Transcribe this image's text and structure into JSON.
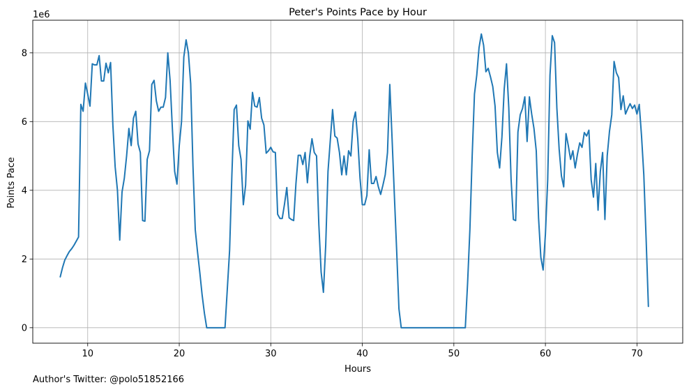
{
  "chart_data": {
    "type": "line",
    "title": "Peter's Points Pace by Hour",
    "xlabel": "Hours",
    "ylabel": "Points Pace",
    "y_offset_label": "1e6",
    "xlim": [
      4,
      75
    ],
    "ylim": [
      -0.45,
      8.95
    ],
    "xticks": [
      10,
      20,
      30,
      40,
      50,
      60,
      70
    ],
    "yticks": [
      0,
      2,
      4,
      6,
      8
    ],
    "grid": true,
    "line_color": "#1f77b4",
    "series": [
      {
        "x": [
          7.0,
          7.25,
          7.5,
          7.75,
          8.0,
          8.25,
          8.5,
          8.75,
          9.0,
          9.25,
          9.5,
          9.75,
          10.0,
          10.25,
          10.5,
          10.75,
          11.0,
          11.25,
          11.5,
          11.75,
          12.0,
          12.25,
          12.5,
          12.75,
          13.0,
          13.25,
          13.5,
          13.75,
          14.0,
          14.25,
          14.5,
          14.75,
          15.0,
          15.25,
          15.5,
          15.75,
          16.0,
          16.25,
          16.5,
          16.75,
          17.0,
          17.25,
          17.5,
          17.75,
          18.0,
          18.25,
          18.5,
          18.75,
          19.0,
          19.25,
          19.5,
          19.75,
          20.0,
          20.25,
          20.5,
          20.75,
          21.0,
          21.25,
          21.5,
          21.75,
          22.0,
          22.25,
          22.5,
          22.75,
          23.0,
          23.25,
          23.5,
          23.75,
          24.0,
          24.25,
          24.5,
          24.75,
          25.0,
          25.25,
          25.5,
          25.75,
          26.0,
          26.25,
          26.5,
          26.75,
          27.0,
          27.25,
          27.5,
          27.75,
          28.0,
          28.25,
          28.5,
          28.75,
          29.0,
          29.25,
          29.5,
          29.75,
          30.0,
          30.25,
          30.5,
          30.75,
          31.0,
          31.25,
          31.5,
          31.75,
          32.0,
          32.25,
          32.5,
          32.75,
          33.0,
          33.25,
          33.5,
          33.75,
          34.0,
          34.25,
          34.5,
          34.75,
          35.0,
          35.25,
          35.5,
          35.75,
          36.0,
          36.25,
          36.5,
          36.75,
          37.0,
          37.25,
          37.5,
          37.75,
          38.0,
          38.25,
          38.5,
          38.75,
          39.0,
          39.25,
          39.5,
          39.75,
          40.0,
          40.25,
          40.5,
          40.75,
          41.0,
          41.25,
          41.5,
          41.75,
          42.0,
          42.25,
          42.5,
          42.75,
          43.0,
          43.25,
          43.5,
          43.75,
          44.0,
          44.25,
          44.5,
          44.75,
          45.0,
          45.25,
          45.5,
          45.75,
          46.0,
          46.25,
          46.5,
          46.75,
          47.0,
          47.25,
          47.5,
          47.75,
          48.0,
          48.25,
          48.5,
          48.75,
          49.0,
          49.25,
          49.5,
          49.75,
          50.0,
          50.25,
          50.5,
          50.75,
          51.0,
          51.25,
          51.5,
          51.75,
          52.0,
          52.25,
          52.5,
          52.75,
          53.0,
          53.25,
          53.5,
          53.75,
          54.0,
          54.25,
          54.5,
          54.75,
          55.0,
          55.25,
          55.5,
          55.75,
          56.0,
          56.25,
          56.5,
          56.75,
          57.0,
          57.25,
          57.5,
          57.75,
          58.0,
          58.25,
          58.5,
          58.75,
          59.0,
          59.25,
          59.5,
          59.75,
          60.0,
          60.25,
          60.5,
          60.75,
          61.0,
          61.25,
          61.5,
          61.75,
          62.0,
          62.25,
          62.5,
          62.75,
          63.0,
          63.25,
          63.5,
          63.75,
          64.0,
          64.25,
          64.5,
          64.75,
          65.0,
          65.25,
          65.5,
          65.75,
          66.0,
          66.25,
          66.5,
          66.75,
          67.0,
          67.25,
          67.5,
          67.75,
          68.0,
          68.25,
          68.5,
          68.75,
          69.0,
          69.25,
          69.5,
          69.75,
          70.0,
          70.25,
          70.5,
          70.75,
          71.0,
          71.25
        ],
        "values": [
          1.48,
          1.75,
          1.97,
          2.1,
          2.22,
          2.3,
          2.4,
          2.52,
          2.64,
          6.5,
          6.3,
          7.12,
          6.8,
          6.45,
          7.68,
          7.65,
          7.65,
          7.92,
          7.18,
          7.18,
          7.7,
          7.42,
          7.72,
          5.9,
          4.68,
          4.0,
          2.55,
          3.95,
          4.35,
          5.0,
          5.8,
          5.3,
          6.1,
          6.3,
          5.35,
          5.1,
          3.12,
          3.1,
          4.9,
          5.15,
          7.08,
          7.2,
          6.6,
          6.3,
          6.42,
          6.42,
          6.7,
          8.0,
          7.2,
          5.8,
          4.55,
          4.18,
          5.3,
          6.0,
          7.88,
          8.38,
          8.0,
          7.1,
          4.7,
          2.85,
          2.2,
          1.6,
          0.95,
          0.42,
          0.0,
          0.0,
          0.0,
          0.0,
          0.0,
          0.0,
          0.0,
          0.0,
          0.0,
          1.12,
          2.25,
          4.45,
          6.35,
          6.48,
          5.3,
          4.9,
          3.58,
          4.15,
          6.02,
          5.78,
          6.85,
          6.45,
          6.42,
          6.7,
          6.1,
          5.9,
          5.08,
          5.15,
          5.25,
          5.12,
          5.1,
          3.3,
          3.18,
          3.18,
          3.6,
          4.08,
          3.2,
          3.15,
          3.12,
          4.2,
          5.02,
          5.02,
          4.75,
          5.1,
          4.22,
          5.0,
          5.5,
          5.1,
          5.0,
          3.0,
          1.62,
          1.03,
          2.4,
          4.55,
          5.45,
          6.35,
          5.58,
          5.52,
          5.1,
          4.45,
          5.0,
          4.45,
          5.15,
          5.0,
          6.0,
          6.28,
          5.5,
          4.35,
          3.58,
          3.58,
          3.85,
          5.18,
          4.2,
          4.2,
          4.4,
          4.1,
          3.88,
          4.15,
          4.45,
          5.1,
          7.08,
          5.5,
          3.85,
          2.25,
          0.55,
          0.0,
          0.0,
          0.0,
          0.0,
          0.0,
          0.0,
          0.0,
          0.0,
          0.0,
          0.0,
          0.0,
          0.0,
          0.0,
          0.0,
          0.0,
          0.0,
          0.0,
          0.0,
          0.0,
          0.0,
          0.0,
          0.0,
          0.0,
          0.0,
          0.0,
          0.0,
          0.0,
          0.0,
          0.0,
          1.3,
          2.85,
          5.0,
          6.8,
          7.35,
          8.15,
          8.55,
          8.22,
          7.45,
          7.55,
          7.3,
          7.02,
          6.45,
          5.1,
          4.65,
          5.55,
          6.95,
          7.68,
          6.4,
          4.32,
          3.15,
          3.12,
          5.7,
          6.2,
          6.38,
          6.72,
          5.42,
          6.72,
          6.22,
          5.8,
          5.15,
          3.2,
          2.05,
          1.68,
          2.72,
          4.3,
          7.35,
          8.5,
          8.3,
          6.4,
          5.2,
          4.42,
          4.1,
          5.65,
          5.3,
          4.9,
          5.15,
          4.65,
          5.05,
          5.38,
          5.25,
          5.68,
          5.58,
          5.75,
          4.3,
          3.8,
          4.78,
          3.42,
          4.55,
          5.1,
          3.15,
          5.0,
          5.72,
          6.2,
          7.75,
          7.42,
          7.28,
          6.35,
          6.75,
          6.22,
          6.38,
          6.52,
          6.38,
          6.48,
          6.22,
          6.5,
          5.58,
          4.45,
          2.6,
          0.62
        ]
      }
    ]
  },
  "footer": {
    "author": "Author's Twitter: @polo51852166"
  }
}
